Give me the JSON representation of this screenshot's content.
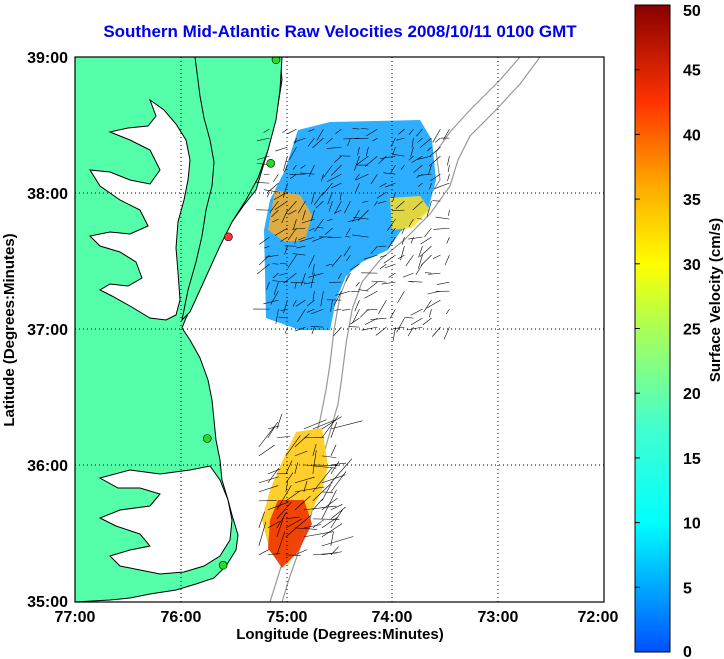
{
  "title": "Southern Mid-Atlantic Raw Velocities 2008/10/11 0100 GMT",
  "x_axis": {
    "label": "Longitude (Degrees:Minutes)",
    "ticks": [
      "77:00",
      "76:00",
      "75:00",
      "74:00",
      "73:00",
      "72:00"
    ]
  },
  "y_axis": {
    "label": "Latitude (Degrees:Minutes)",
    "ticks": [
      "39:00",
      "38:00",
      "37:00",
      "36:00",
      "35:00"
    ]
  },
  "colorbar": {
    "label": "Surface Velocity (cm/s)",
    "ticks": [
      "50",
      "45",
      "40",
      "35",
      "30",
      "25",
      "20",
      "15",
      "10",
      "5",
      "0"
    ],
    "min": 0,
    "max": 50
  },
  "map_extent": {
    "lon_west": -77,
    "lon_east": -72,
    "lat_south": 35,
    "lat_north": 39
  },
  "colors": {
    "land": "#55ffaa",
    "water": "#ffffff",
    "coastline": "#000000",
    "bathymetry": "#999999",
    "station_marker": "#22dd22",
    "station_marker_inactive": "#ff3333",
    "title": "#0000ee"
  },
  "stations": [
    {
      "lon": -75.1,
      "lat": 38.98,
      "status": "active"
    },
    {
      "lon": -75.15,
      "lat": 38.22,
      "status": "active"
    },
    {
      "lon": -75.55,
      "lat": 37.68,
      "status": "inactive"
    },
    {
      "lon": -75.75,
      "lat": 36.2,
      "status": "active"
    },
    {
      "lon": -75.6,
      "lat": 35.27,
      "status": "active"
    }
  ],
  "velocity_fields": [
    {
      "name": "northern",
      "lon_range": [
        -75.2,
        -73.4
      ],
      "lat_range": [
        37.0,
        38.5
      ],
      "typical_speed_cm_s": 8,
      "dominant_direction": "south-west"
    },
    {
      "name": "southern",
      "lon_range": [
        -75.3,
        -74.5
      ],
      "lat_range": [
        35.3,
        36.3
      ],
      "typical_speed_cm_s": 30,
      "dominant_direction": "north-east"
    }
  ],
  "grid": true
}
